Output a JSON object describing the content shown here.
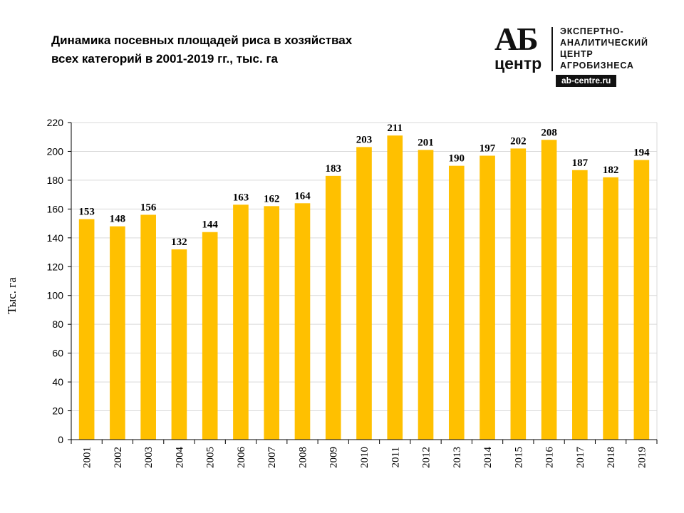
{
  "header": {
    "title_line1": "Динамика посевных площадей риса в хозяйствах",
    "title_line2": "всех категорий в 2001-2019 гг., тыс. га"
  },
  "logo": {
    "mark_top": "АБ",
    "mark_bottom": "центр",
    "line1": "ЭКСПЕРТНО-",
    "line2": "АНАЛИТИЧЕСКИЙ",
    "line3": "ЦЕНТР",
    "line4": "АГРОБИЗНЕСА",
    "site": "ab-centre.ru"
  },
  "chart_data": {
    "type": "bar",
    "title": "Динамика посевных площадей риса в хозяйствах всех категорий в 2001-2019 гг., тыс. га",
    "xlabel": "",
    "ylabel": "Тыс. га",
    "categories": [
      "2001",
      "2002",
      "2003",
      "2004",
      "2005",
      "2006",
      "2007",
      "2008",
      "2009",
      "2010",
      "2011",
      "2012",
      "2013",
      "2014",
      "2015",
      "2016",
      "2017",
      "2018",
      "2019"
    ],
    "values": [
      153,
      148,
      156,
      132,
      144,
      163,
      162,
      164,
      183,
      203,
      211,
      201,
      190,
      197,
      202,
      208,
      187,
      182,
      194
    ],
    "ylim": [
      0,
      220
    ],
    "yticks": [
      0,
      20,
      40,
      60,
      80,
      100,
      120,
      140,
      160,
      180,
      200,
      220
    ],
    "grid": true,
    "bar_color": "#FFC000",
    "grid_color": "#D9D9D9",
    "data_labels": true,
    "legend": "none"
  }
}
